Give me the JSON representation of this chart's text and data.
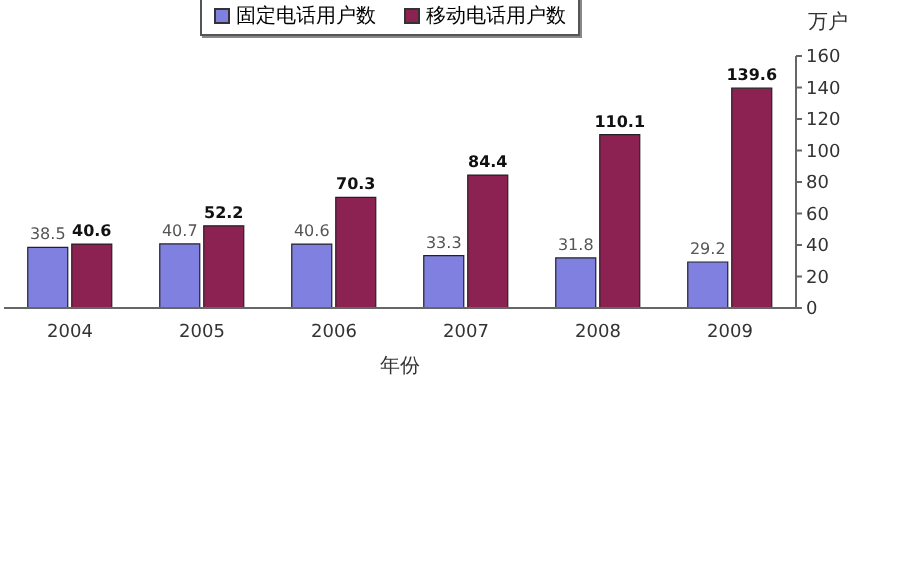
{
  "chart_data": {
    "type": "bar",
    "xlabel": "年份",
    "ylabel": "万户",
    "categories": [
      "2004",
      "2005",
      "2006",
      "2007",
      "2008",
      "2009"
    ],
    "series": [
      {
        "name": "固定电话用户数",
        "color": "#8080e0",
        "values": [
          38.5,
          40.7,
          40.6,
          33.3,
          31.8,
          29.2
        ]
      },
      {
        "name": "移动电话用户数",
        "color": "#8b2252",
        "values": [
          40.6,
          52.2,
          70.3,
          84.4,
          110.1,
          139.6
        ]
      }
    ],
    "ylim": [
      0,
      160
    ],
    "yticks": [
      0,
      20,
      40,
      60,
      80,
      100,
      120,
      140,
      160
    ],
    "grid": false,
    "legend": "top",
    "data_labels": true
  }
}
